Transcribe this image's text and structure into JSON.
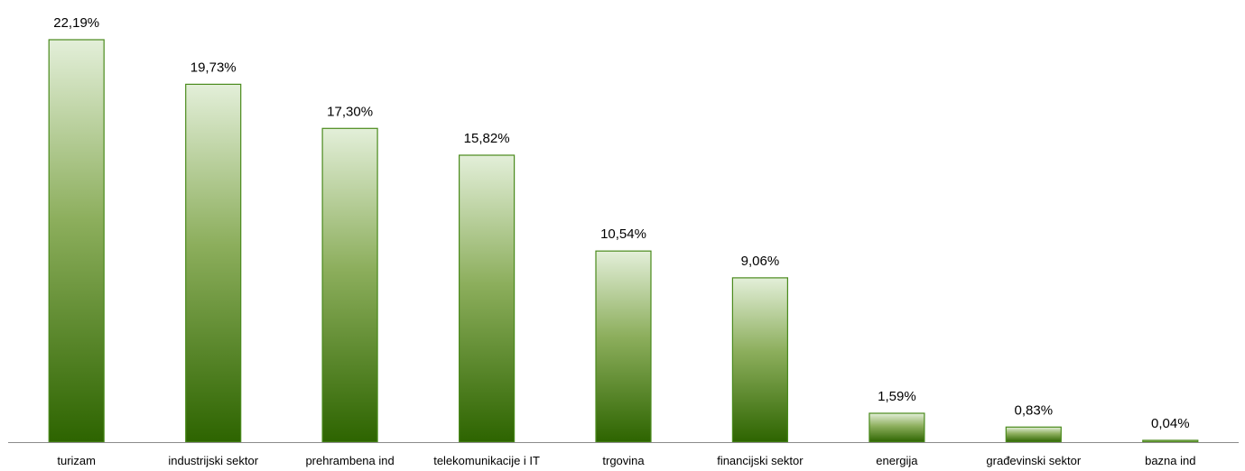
{
  "chart_data": {
    "type": "bar",
    "categories": [
      "turizam",
      "industrijski sektor",
      "prehrambena ind",
      "telekomunikacije i IT",
      "trgovina",
      "financijski sektor",
      "energija",
      "građevinski sektor",
      "bazna ind"
    ],
    "values": [
      22.19,
      19.73,
      17.3,
      15.82,
      10.54,
      9.06,
      1.59,
      0.83,
      0.04
    ],
    "data_labels": [
      "22,19%",
      "19,73%",
      "17,30%",
      "15,82%",
      "10,54%",
      "9,06%",
      "1,59%",
      "0,83%",
      "0,04%"
    ],
    "title": "",
    "xlabel": "",
    "ylabel": "",
    "ylim": [
      0,
      22.19
    ],
    "grid": false,
    "legend": "none",
    "colors": {
      "bar_top": "#e3efd9",
      "bar_mid": "#8cae5c",
      "bar_bottom": "#2d6400",
      "bar_border": "#4a8a1c",
      "axis": "#8c8c8c"
    }
  }
}
